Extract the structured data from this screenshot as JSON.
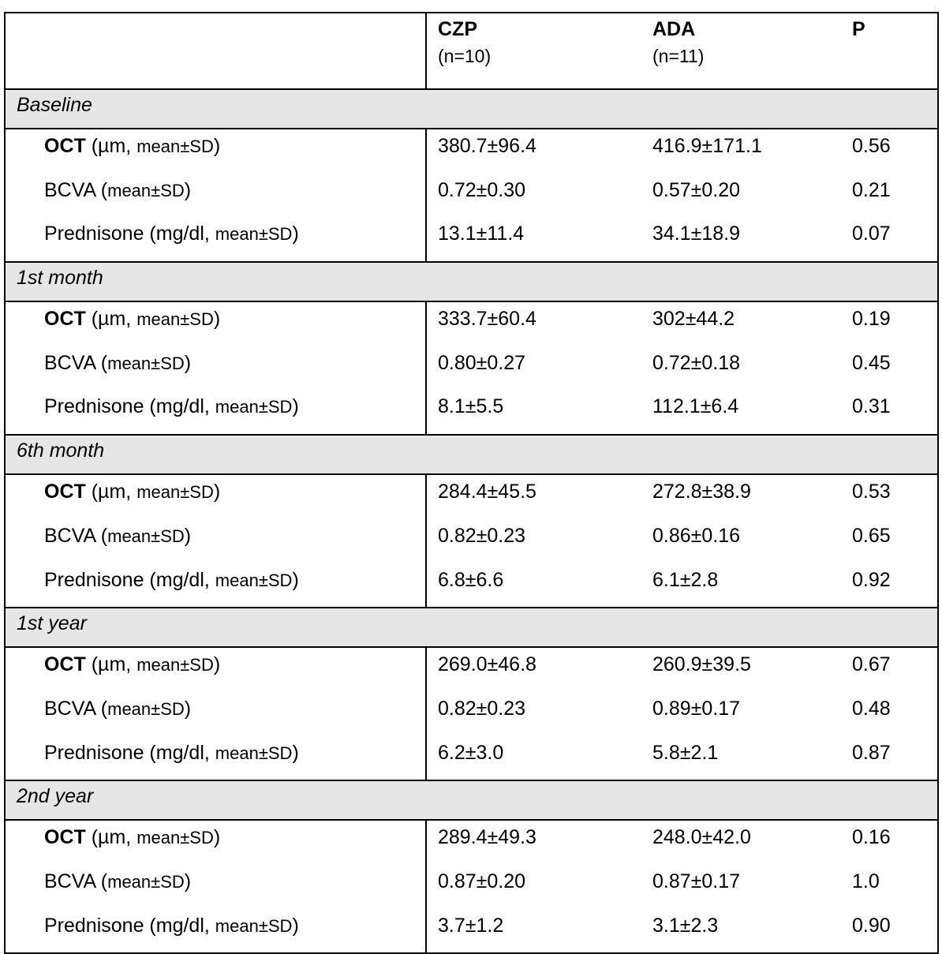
{
  "header": {
    "col1": {
      "label": "CZP",
      "n": "(n=10)"
    },
    "col2": {
      "label": "ADA",
      "n": "(n=11)"
    },
    "col3": {
      "label": "P"
    }
  },
  "sections": [
    {
      "title": "Baseline",
      "rows": [
        {
          "czp": "380.7±96.4",
          "ada": "416.9±171.1",
          "p": "0.56"
        },
        {
          "czp": "0.72±0.30",
          "ada": "0.57±0.20",
          "p": "0.21"
        },
        {
          "czp": "13.1±11.4",
          "ada": "34.1±18.9",
          "p": "0.07"
        }
      ]
    },
    {
      "title": "1st month",
      "rows": [
        {
          "czp": "333.7±60.4",
          "ada": "302±44.2",
          "p": "0.19"
        },
        {
          "czp": "0.80±0.27",
          "ada": "0.72±0.18",
          "p": "0.45"
        },
        {
          "czp": "8.1±5.5",
          "ada": "112.1±6.4",
          "p": "0.31"
        }
      ]
    },
    {
      "title": "6th month",
      "rows": [
        {
          "czp": "284.4±45.5",
          "ada": "272.8±38.9",
          "p": "0.53"
        },
        {
          "czp": "0.82±0.23",
          "ada": "0.86±0.16",
          "p": "0.65"
        },
        {
          "czp": "6.8±6.6",
          "ada": "6.1±2.8",
          "p": "0.92"
        }
      ]
    },
    {
      "title": "1st year",
      "rows": [
        {
          "czp": "269.0±46.8",
          "ada": "260.9±39.5",
          "p": "0.67"
        },
        {
          "czp": "0.82±0.23",
          "ada": "0.89±0.17",
          "p": "0.48"
        },
        {
          "czp": "6.2±3.0",
          "ada": "5.8±2.1",
          "p": "0.87"
        }
      ]
    },
    {
      "title": "2nd year",
      "rows": [
        {
          "czp": "289.4±49.3",
          "ada": "248.0±42.0",
          "p": "0.16"
        },
        {
          "czp": "0.87±0.20",
          "ada": "0.87±0.17",
          "p": "1.0"
        },
        {
          "czp": "3.7±1.2",
          "ada": "3.1±2.3",
          "p": "0.90"
        }
      ]
    }
  ],
  "row_labels": {
    "oct_main": "OCT",
    "oct_unit": " (µm, ",
    "oct_stat": "mean±SD",
    "oct_close": ")",
    "bcva_main": "BCVA (",
    "bcva_stat": "mean±SD",
    "bcva_close": ")",
    "pred_main": "Prednisone (mg/dl, ",
    "pred_stat": "mean±SD",
    "pred_close": ")"
  }
}
